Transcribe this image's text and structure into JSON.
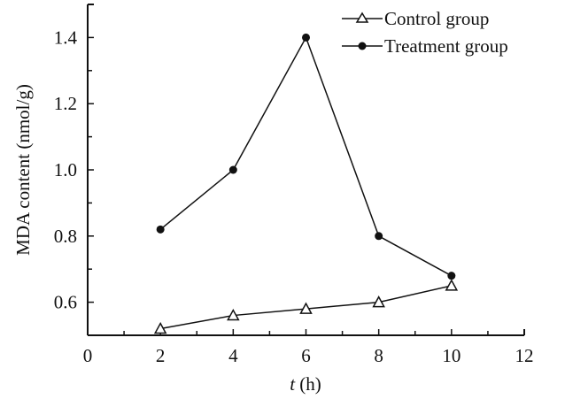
{
  "chart_data": {
    "type": "line",
    "title": "",
    "xlabel_italic": "t",
    "xlabel_rest": " (h)",
    "ylabel": "MDA content (nmol/g)",
    "xlim": [
      0,
      12
    ],
    "ylim": [
      0.5,
      1.5
    ],
    "xticks": [
      0,
      2,
      4,
      6,
      8,
      10,
      12
    ],
    "xtick_labels": [
      "0",
      "2",
      "4",
      "6",
      "8",
      "10",
      "12"
    ],
    "yticks": [
      0.6,
      0.8,
      1.0,
      1.2,
      1.4
    ],
    "ytick_labels": [
      "0.6",
      "0.8",
      "1.0",
      "1.2",
      "1.4"
    ],
    "grid": false,
    "legend_position": "top-right",
    "x": [
      2,
      4,
      6,
      8,
      10
    ],
    "series": [
      {
        "name": "Control group",
        "marker": "open-triangle",
        "values": [
          0.52,
          0.56,
          0.58,
          0.6,
          0.65
        ]
      },
      {
        "name": "Treatment group",
        "marker": "filled-circle",
        "values": [
          0.82,
          1.0,
          1.4,
          0.8,
          0.68
        ]
      }
    ]
  }
}
